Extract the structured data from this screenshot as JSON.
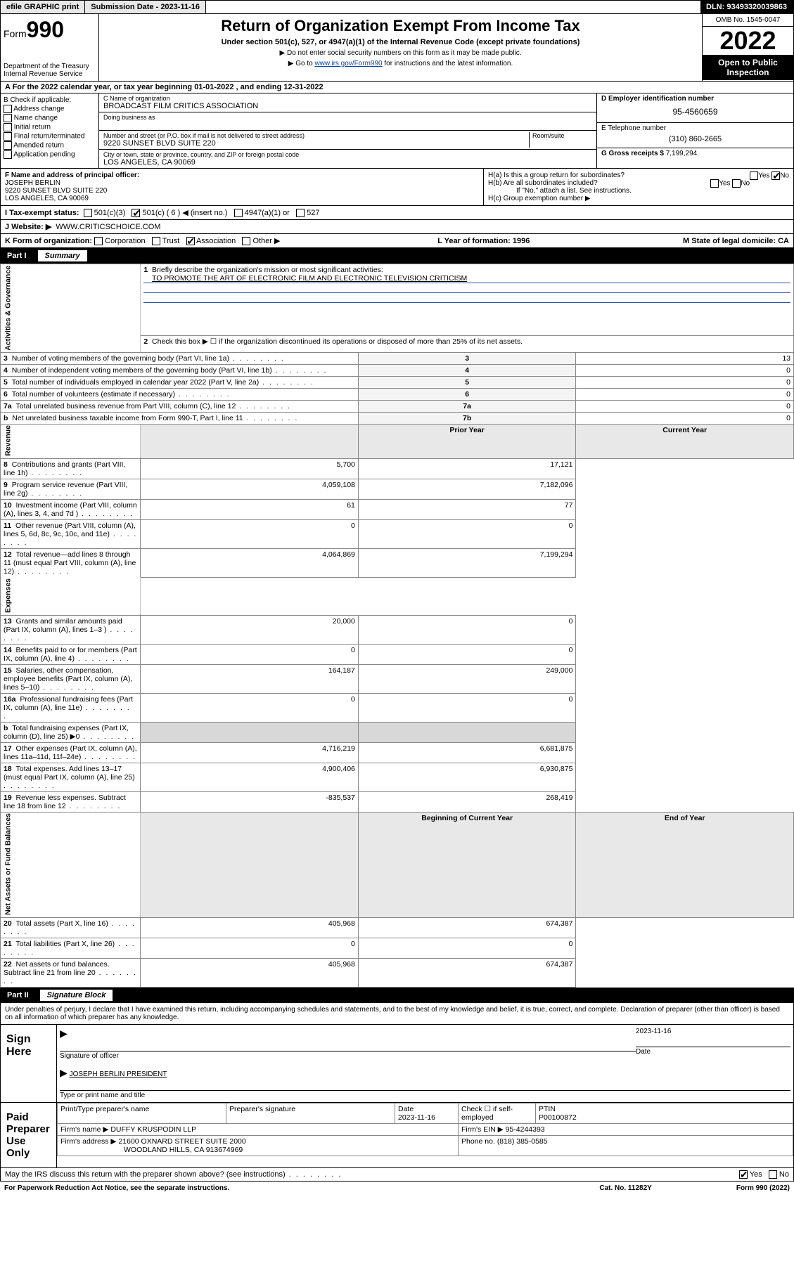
{
  "top": {
    "efile": "efile GRAPHIC print",
    "sub_label": "Submission Date - 2023-11-16",
    "dln": "DLN: 93493320039863"
  },
  "header": {
    "form_prefix": "Form",
    "form_no": "990",
    "dept": "Department of the Treasury",
    "irs": "Internal Revenue Service",
    "title": "Return of Organization Exempt From Income Tax",
    "sub": "Under section 501(c), 527, or 4947(a)(1) of the Internal Revenue Code (except private foundations)",
    "note1": "▶ Do not enter social security numbers on this form as it may be made public.",
    "note2_pre": "▶ Go to ",
    "note2_link": "www.irs.gov/Form990",
    "note2_post": " for instructions and the latest information.",
    "omb": "OMB No. 1545-0047",
    "year": "2022",
    "open": "Open to Public Inspection"
  },
  "rowA": "A For the 2022 calendar year, or tax year beginning 01-01-2022    , and ending 12-31-2022",
  "colB": {
    "hdr": "B Check if applicable:",
    "items": [
      "Address change",
      "Name change",
      "Initial return",
      "Final return/terminated",
      "Amended return",
      "Application pending"
    ]
  },
  "colC": {
    "name_lbl": "C Name of organization",
    "name": "BROADCAST FILM CRITICS ASSOCIATION",
    "dba_lbl": "Doing business as",
    "dba": "",
    "addr_lbl": "Number and street (or P.O. box if mail is not delivered to street address)",
    "addr": "9220 SUNSET BLVD SUITE 220",
    "room_lbl": "Room/suite",
    "city_lbl": "City or town, state or province, country, and ZIP or foreign postal code",
    "city": "LOS ANGELES, CA  90069"
  },
  "colDE": {
    "d_lbl": "D Employer identification number",
    "d_val": "95-4560659",
    "e_lbl": "E Telephone number",
    "e_val": "(310) 860-2665",
    "g_lbl": "G Gross receipts $",
    "g_val": "7,199,294"
  },
  "rowF": {
    "lbl": "F Name and address of principal officer:",
    "name": "JOSEPH BERLIN",
    "addr1": "9220 SUNSET BLVD SUITE 220",
    "addr2": "LOS ANGELES, CA  90069"
  },
  "rowH": {
    "a": "H(a)  Is this a group return for subordinates?",
    "b": "H(b)  Are all subordinates included?",
    "b_note": "If \"No,\" attach a list. See instructions.",
    "c": "H(c)  Group exemption number ▶"
  },
  "rowI": {
    "lbl": "I    Tax-exempt status:",
    "opts": [
      "501(c)(3)",
      "501(c) ( 6 ) ◀ (insert no.)",
      "4947(a)(1) or",
      "527"
    ]
  },
  "rowJ": {
    "lbl": "J    Website: ▶",
    "val": "WWW.CRITICSCHOICE.COM"
  },
  "rowK": {
    "lbl": "K Form of organization:",
    "opts": [
      "Corporation",
      "Trust",
      "Association",
      "Other ▶"
    ]
  },
  "rowLM": {
    "l": "L Year of formation: 1996",
    "m": "M State of legal domicile: CA"
  },
  "part1": {
    "hdr": "Part I",
    "title": "Summary",
    "q1": "Briefly describe the organization's mission or most significant activities:",
    "mission": "TO PROMOTE THE ART OF ELECTRONIC FILM AND ELECTRONIC TELEVISION CRITICISM",
    "q2": "Check this box ▶ ☐  if the organization discontinued its operations or disposed of more than 25% of its net assets.",
    "gov_label": "Activities & Governance",
    "rev_label": "Revenue",
    "exp_label": "Expenses",
    "na_label": "Net Assets or Fund Balances",
    "gov_rows": [
      {
        "n": "3",
        "t": "Number of voting members of the governing body (Part VI, line 1a)",
        "b": "3",
        "v": "13"
      },
      {
        "n": "4",
        "t": "Number of independent voting members of the governing body (Part VI, line 1b)",
        "b": "4",
        "v": "0"
      },
      {
        "n": "5",
        "t": "Total number of individuals employed in calendar year 2022 (Part V, line 2a)",
        "b": "5",
        "v": "0"
      },
      {
        "n": "6",
        "t": "Total number of volunteers (estimate if necessary)",
        "b": "6",
        "v": "0"
      },
      {
        "n": "7a",
        "t": "Total unrelated business revenue from Part VIII, column (C), line 12",
        "b": "7a",
        "v": "0"
      },
      {
        "n": "b",
        "t": "Net unrelated business taxable income from Form 990-T, Part I, line 11",
        "b": "7b",
        "v": "0"
      }
    ],
    "py_hdr": "Prior Year",
    "cy_hdr": "Current Year",
    "rev_rows": [
      {
        "n": "8",
        "t": "Contributions and grants (Part VIII, line 1h)",
        "py": "5,700",
        "cy": "17,121"
      },
      {
        "n": "9",
        "t": "Program service revenue (Part VIII, line 2g)",
        "py": "4,059,108",
        "cy": "7,182,096"
      },
      {
        "n": "10",
        "t": "Investment income (Part VIII, column (A), lines 3, 4, and 7d )",
        "py": "61",
        "cy": "77"
      },
      {
        "n": "11",
        "t": "Other revenue (Part VIII, column (A), lines 5, 6d, 8c, 9c, 10c, and 11e)",
        "py": "0",
        "cy": "0"
      },
      {
        "n": "12",
        "t": "Total revenue—add lines 8 through 11 (must equal Part VIII, column (A), line 12)",
        "py": "4,064,869",
        "cy": "7,199,294"
      }
    ],
    "exp_rows": [
      {
        "n": "13",
        "t": "Grants and similar amounts paid (Part IX, column (A), lines 1–3 )",
        "py": "20,000",
        "cy": "0"
      },
      {
        "n": "14",
        "t": "Benefits paid to or for members (Part IX, column (A), line 4)",
        "py": "0",
        "cy": "0"
      },
      {
        "n": "15",
        "t": "Salaries, other compensation, employee benefits (Part IX, column (A), lines 5–10)",
        "py": "164,187",
        "cy": "249,000"
      },
      {
        "n": "16a",
        "t": "Professional fundraising fees (Part IX, column (A), line 11e)",
        "py": "0",
        "cy": "0"
      },
      {
        "n": "b",
        "t": "Total fundraising expenses (Part IX, column (D), line 25) ▶0",
        "py": "",
        "cy": "",
        "shade": true
      },
      {
        "n": "17",
        "t": "Other expenses (Part IX, column (A), lines 11a–11d, 11f–24e)",
        "py": "4,716,219",
        "cy": "6,681,875"
      },
      {
        "n": "18",
        "t": "Total expenses. Add lines 13–17 (must equal Part IX, column (A), line 25)",
        "py": "4,900,406",
        "cy": "6,930,875"
      },
      {
        "n": "19",
        "t": "Revenue less expenses. Subtract line 18 from line 12",
        "py": "-835,537",
        "cy": "268,419"
      }
    ],
    "by_hdr": "Beginning of Current Year",
    "ey_hdr": "End of Year",
    "na_rows": [
      {
        "n": "20",
        "t": "Total assets (Part X, line 16)",
        "py": "405,968",
        "cy": "674,387"
      },
      {
        "n": "21",
        "t": "Total liabilities (Part X, line 26)",
        "py": "0",
        "cy": "0"
      },
      {
        "n": "22",
        "t": "Net assets or fund balances. Subtract line 21 from line 20",
        "py": "405,968",
        "cy": "674,387"
      }
    ]
  },
  "part2": {
    "hdr": "Part II",
    "title": "Signature Block",
    "decl": "Under penalties of perjury, I declare that I have examined this return, including accompanying schedules and statements, and to the best of my knowledge and belief, it is true, correct, and complete. Declaration of preparer (other than officer) is based on all information of which preparer has any knowledge.",
    "sign_here": "Sign Here",
    "sig_officer": "Signature of officer",
    "sig_date": "2023-11-16",
    "date_lbl": "Date",
    "officer_name": "JOSEPH BERLIN  PRESIDENT",
    "officer_lbl": "Type or print name and title",
    "paid": "Paid Preparer Use Only",
    "prep_name_lbl": "Print/Type preparer's name",
    "prep_sig_lbl": "Preparer's signature",
    "prep_date_lbl": "Date",
    "prep_date": "2023-11-16",
    "check_if": "Check ☐ if self-employed",
    "ptin_lbl": "PTIN",
    "ptin": "P00100872",
    "firm_name_lbl": "Firm's name    ▶",
    "firm_name": "DUFFY KRUSPODIN LLP",
    "firm_ein_lbl": "Firm's EIN ▶",
    "firm_ein": "95-4244393",
    "firm_addr_lbl": "Firm's address ▶",
    "firm_addr1": "21600 OXNARD STREET SUITE 2000",
    "firm_addr2": "WOODLAND HILLS, CA  913674969",
    "phone_lbl": "Phone no.",
    "phone": "(818) 385-0585",
    "discuss": "May the IRS discuss this return with the preparer shown above? (see instructions)"
  },
  "footer": {
    "pra": "For Paperwork Reduction Act Notice, see the separate instructions.",
    "cat": "Cat. No. 11282Y",
    "form": "Form 990 (2022)"
  },
  "colors": {
    "link": "#0645ad",
    "rule": "#2b4fad"
  }
}
